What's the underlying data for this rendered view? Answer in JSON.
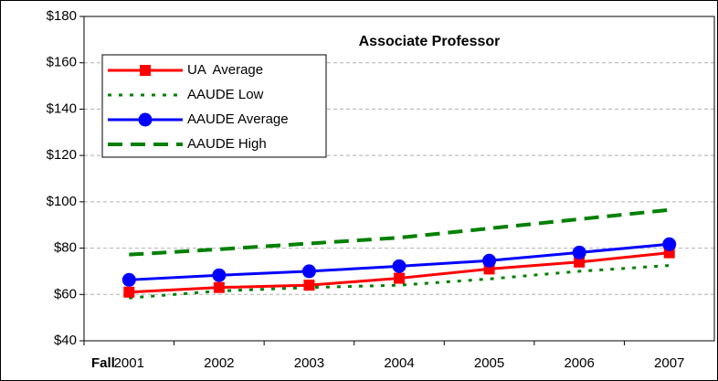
{
  "chart_data": {
    "type": "line",
    "title": "Associate Professor",
    "xlabel": "Fall",
    "categories": [
      "2001",
      "2002",
      "2003",
      "2004",
      "2005",
      "2006",
      "2007"
    ],
    "series": [
      {
        "name": "UA  Average",
        "color": "#ff0000",
        "line_style": "solid",
        "marker": "square",
        "values": [
          61,
          63,
          64,
          67,
          71,
          74,
          78
        ]
      },
      {
        "name": "AAUDE Low",
        "color": "#008000",
        "line_style": "dotted",
        "marker": null,
        "values": [
          58.5,
          61.5,
          63,
          64,
          66.7,
          70,
          72.5
        ]
      },
      {
        "name": "AAUDE Average",
        "color": "#0000ff",
        "line_style": "solid",
        "marker": "circle",
        "values": [
          66.3,
          68.3,
          70,
          72.2,
          74.6,
          78.1,
          81.7
        ]
      },
      {
        "name": "AAUDE High",
        "color": "#008000",
        "line_style": "dashed",
        "marker": null,
        "values": [
          77.2,
          79.5,
          82,
          84.5,
          88.5,
          92.5,
          96.5
        ]
      }
    ],
    "ylim": [
      40,
      180
    ],
    "yticks": [
      {
        "value": 40,
        "label": "$40"
      },
      {
        "value": 60,
        "label": "$60"
      },
      {
        "value": 80,
        "label": "$80"
      },
      {
        "value": 100,
        "label": "$100"
      },
      {
        "value": 120,
        "label": "$120"
      },
      {
        "value": 140,
        "label": "$140"
      },
      {
        "value": 160,
        "label": "$160"
      },
      {
        "value": 180,
        "label": "$180"
      }
    ],
    "grid": true,
    "legend": "upper left"
  }
}
